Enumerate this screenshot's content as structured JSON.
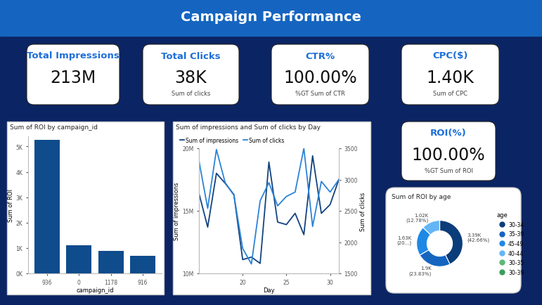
{
  "header": {
    "title": "Campaign Performance"
  },
  "cards": [
    {
      "title": "Total Impressions",
      "value": "213M"
    },
    {
      "title": "Total Clicks",
      "value": "38K",
      "subtitle": "Sum of clicks"
    },
    {
      "title": "CTR%",
      "value": "100.00%",
      "subtitle": "%GT Sum of CTR"
    },
    {
      "title": "CPC($)",
      "value": "1.40K",
      "subtitle": "Sum of CPC"
    },
    {
      "title": "ROI(%)",
      "value": "100.00%",
      "subtitle": "%GT Sum of ROI"
    }
  ],
  "chart_data": [
    {
      "type": "bar",
      "title": "Sum of ROI by campaign_id",
      "x_label": "campaign_id",
      "y_label": "Sum of ROI",
      "categories": [
        "936",
        "0",
        "1178",
        "916"
      ],
      "values": [
        5250,
        1120,
        900,
        680
      ],
      "color": "#0f4c8c",
      "ylim": [
        0,
        5400
      ],
      "yticks": [
        {
          "value": 0,
          "label": "0K"
        },
        {
          "value": 1000,
          "label": "1K"
        },
        {
          "value": 2000,
          "label": "2K"
        },
        {
          "value": 3000,
          "label": "3K"
        },
        {
          "value": 4000,
          "label": "4K"
        },
        {
          "value": 5000,
          "label": "5K"
        }
      ],
      "grid": false
    },
    {
      "type": "line",
      "title": "Sum of impressions and Sum of clicks by Day",
      "x_label": "Day",
      "y_label": "Sum of impressions",
      "y2_label": "Sum of clicks",
      "x": [
        15,
        16,
        17,
        18,
        19,
        20,
        21,
        22,
        23,
        24,
        25,
        26,
        27,
        28,
        29,
        30,
        31
      ],
      "series": [
        {
          "name": "Sum of impressions",
          "color": "#12427f",
          "values": [
            16400000,
            13700000,
            18000000,
            17200000,
            16300000,
            11100000,
            11300000,
            10800000,
            18900000,
            14100000,
            13900000,
            14800000,
            13100000,
            19400000,
            14800000,
            15500000,
            17500000
          ]
        },
        {
          "name": "Sum of clicks",
          "color": "#2b83d6",
          "axis": "y2",
          "values": [
            3300,
            2540,
            3480,
            2950,
            2750,
            1900,
            1650,
            2660,
            2950,
            2580,
            2730,
            2800,
            3500,
            2250,
            2970,
            2800,
            3000
          ]
        }
      ],
      "xlim": [
        15,
        31
      ],
      "xticks": [
        20,
        25,
        30
      ],
      "ylim": [
        10000000,
        20000000
      ],
      "yticks": [
        {
          "value": 10000000,
          "label": "10M"
        },
        {
          "value": 15000000,
          "label": "15M"
        },
        {
          "value": 20000000,
          "label": "20M"
        }
      ],
      "y2lim": [
        1500,
        3500
      ],
      "y2ticks": [
        1500,
        2000,
        2500,
        3000,
        3500
      ],
      "legend": "upper left",
      "grid": false
    },
    {
      "type": "pie",
      "title": "Sum of ROI by age",
      "legend_title": "age",
      "categories": [
        "30-34",
        "35-39",
        "45-49",
        "40-44",
        "30-35",
        "30-39"
      ],
      "values": [
        3390,
        1900,
        1630,
        1020,
        0,
        0
      ],
      "value_labels": [
        "3.39K (42.66%)",
        "1.9K (23.83%)",
        "1.63K (20...)",
        "1.02K (12.78%)",
        null,
        null
      ],
      "colors": [
        "#0b3d7a",
        "#1565c0",
        "#1e88e5",
        "#64b5f6",
        "#5cb87a",
        "#3a9d5d"
      ],
      "legend": "right"
    }
  ]
}
